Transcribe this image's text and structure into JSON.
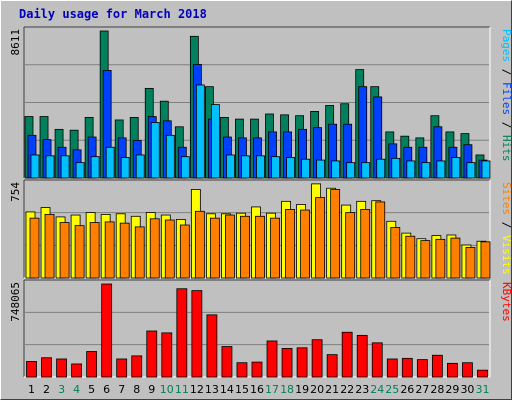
{
  "title": "Daily usage for March 2018",
  "colors": {
    "hits": "#00805c",
    "files": "#0040ff",
    "pages": "#00c0ff",
    "visits": "#ffff00",
    "sites": "#ff8000",
    "kbytes": "#ff0000",
    "weekday_text": "#000000",
    "weekend_text": "#00805c",
    "background": "#c0c0c0"
  },
  "chart_data": [
    {
      "type": "bar",
      "title": "Daily usage for March 2018",
      "ytick": "8611",
      "ymax": 8611,
      "legend": [
        "Pages",
        "Files",
        "Hits"
      ],
      "categories": [
        "1",
        "2",
        "3",
        "4",
        "5",
        "6",
        "7",
        "8",
        "9",
        "10",
        "11",
        "12",
        "13",
        "14",
        "15",
        "16",
        "17",
        "18",
        "19",
        "20",
        "21",
        "22",
        "23",
        "24",
        "25",
        "26",
        "27",
        "28",
        "29",
        "30",
        "31"
      ],
      "weekend_days": [
        "3",
        "4",
        "10",
        "11",
        "17",
        "18",
        "24",
        "25",
        "31"
      ],
      "series": [
        {
          "name": "Hits",
          "values": [
            3600,
            3600,
            2850,
            2800,
            3550,
            8611,
            3400,
            3550,
            5250,
            4500,
            3000,
            8300,
            5350,
            3550,
            3450,
            3450,
            3750,
            3700,
            3650,
            3900,
            4250,
            4350,
            6350,
            5350,
            2700,
            2450,
            2350,
            3650,
            2700,
            2600,
            1350
          ]
        },
        {
          "name": "Files",
          "values": [
            2500,
            2250,
            1800,
            1650,
            2400,
            6300,
            2350,
            2200,
            3600,
            3350,
            1800,
            6650,
            3450,
            2400,
            2350,
            2350,
            2700,
            2700,
            2850,
            2950,
            3150,
            3150,
            5350,
            4750,
            2000,
            1800,
            1800,
            3000,
            1800,
            1950,
            1050
          ]
        },
        {
          "name": "Pages",
          "values": [
            1350,
            1300,
            1300,
            900,
            1250,
            1800,
            1200,
            1350,
            3250,
            2500,
            1250,
            5450,
            4300,
            1350,
            1300,
            1300,
            1250,
            1200,
            1100,
            1050,
            1000,
            900,
            900,
            1100,
            1150,
            1000,
            900,
            1000,
            1200,
            900,
            1000
          ]
        }
      ]
    },
    {
      "type": "bar",
      "ytick": "754",
      "ymax": 754,
      "legend": [
        "Sites",
        "Visits"
      ],
      "categories": [
        "1",
        "2",
        "3",
        "4",
        "5",
        "6",
        "7",
        "8",
        "9",
        "10",
        "11",
        "12",
        "13",
        "14",
        "15",
        "16",
        "17",
        "18",
        "19",
        "20",
        "21",
        "22",
        "23",
        "24",
        "25",
        "26",
        "27",
        "28",
        "29",
        "30",
        "31"
      ],
      "series": [
        {
          "name": "Visits",
          "values": [
            530,
            565,
            490,
            505,
            525,
            510,
            515,
            495,
            525,
            505,
            470,
            710,
            515,
            515,
            520,
            570,
            520,
            615,
            590,
            755,
            720,
            585,
            615,
            620,
            455,
            360,
            315,
            340,
            345,
            265,
            295
          ]
        },
        {
          "name": "Sites",
          "values": [
            480,
            510,
            445,
            420,
            445,
            450,
            440,
            410,
            475,
            465,
            425,
            535,
            480,
            505,
            495,
            495,
            480,
            550,
            545,
            645,
            710,
            525,
            550,
            610,
            405,
            335,
            300,
            310,
            320,
            245,
            290
          ]
        }
      ]
    },
    {
      "type": "bar",
      "ytick": "748065",
      "ymax": 748065,
      "legend": [
        "KBytes"
      ],
      "categories": [
        "1",
        "2",
        "3",
        "4",
        "5",
        "6",
        "7",
        "8",
        "9",
        "10",
        "11",
        "12",
        "13",
        "14",
        "15",
        "16",
        "17",
        "18",
        "19",
        "20",
        "21",
        "22",
        "23",
        "24",
        "25",
        "26",
        "27",
        "28",
        "29",
        "30",
        "31"
      ],
      "series": [
        {
          "name": "KBytes",
          "values": [
            125000,
            155000,
            145000,
            105000,
            205000,
            748065,
            145000,
            170000,
            370000,
            355000,
            710000,
            695000,
            500000,
            245000,
            115000,
            120000,
            290000,
            230000,
            235000,
            300000,
            180000,
            360000,
            335000,
            275000,
            145000,
            150000,
            140000,
            175000,
            110000,
            115000,
            55000
          ]
        }
      ]
    }
  ]
}
